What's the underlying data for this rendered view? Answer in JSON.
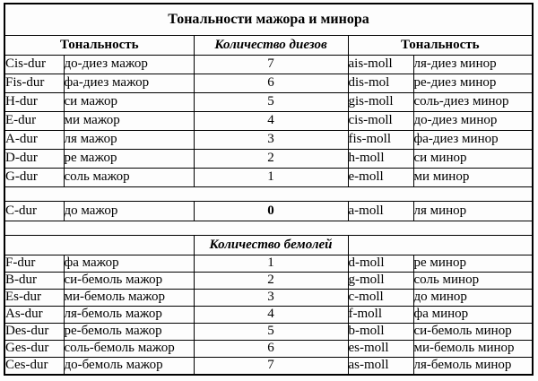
{
  "title": "Тональности мажора и минора",
  "colors": {
    "border": "#000000",
    "text": "#000000",
    "background": "#ffffff"
  },
  "table": {
    "header": {
      "left": "Тональность",
      "middle": "Количество диезов",
      "right": "Тональность"
    },
    "flats_header": "Количество бемолей",
    "sharp_rows": [
      {
        "major_latin": "Cis-dur",
        "major_name": "до-диез мажор",
        "count": "7",
        "minor_latin": "ais-moll",
        "minor_name": "ля-диез минор"
      },
      {
        "major_latin": "Fis-dur",
        "major_name": "фа-диез мажор",
        "count": "6",
        "minor_latin": "dis-mol",
        "minor_name": "ре-диез минор"
      },
      {
        "major_latin": "H-dur",
        "major_name": "си мажор",
        "count": "5",
        "minor_latin": "gis-moll",
        "minor_name": "соль-диез минор"
      },
      {
        "major_latin": "E-dur",
        "major_name": "ми мажор",
        "count": "4",
        "minor_latin": "cis-moll",
        "minor_name": "до-диез минор"
      },
      {
        "major_latin": "A-dur",
        "major_name": "ля мажор",
        "count": "3",
        "minor_latin": "fis-moll",
        "minor_name": "фа-диез минор"
      },
      {
        "major_latin": "D-dur",
        "major_name": "ре мажор",
        "count": "2",
        "minor_latin": "h-moll",
        "minor_name": "си минор"
      },
      {
        "major_latin": "G-dur",
        "major_name": "соль мажор",
        "count": "1",
        "minor_latin": "e-moll",
        "minor_name": "ми минор"
      }
    ],
    "natural_row": {
      "major_latin": "C-dur",
      "major_name": "до мажор",
      "count": "0",
      "minor_latin": "a-moll",
      "minor_name": "ля минор"
    },
    "flat_rows": [
      {
        "major_latin": "F-dur",
        "major_name": "фа мажор",
        "count": "1",
        "minor_latin": "d-moll",
        "minor_name": "ре минор"
      },
      {
        "major_latin": "B-dur",
        "major_name": "си-бемоль мажор",
        "count": "2",
        "minor_latin": "g-moll",
        "minor_name": "соль минор"
      },
      {
        "major_latin": "Es-dur",
        "major_name": "ми-бемоль мажор",
        "count": "3",
        "minor_latin": "c-moll",
        "minor_name": "до минор"
      },
      {
        "major_latin": "As-dur",
        "major_name": "ля-бемоль мажор",
        "count": "4",
        "minor_latin": "f-moll",
        "minor_name": "фа минор"
      },
      {
        "major_latin": "Des-dur",
        "major_name": "ре-бемоль мажор",
        "count": "5",
        "minor_latin": "b-moll",
        "minor_name": "си-бемоль минор"
      },
      {
        "major_latin": "Ges-dur",
        "major_name": "соль-бемоль мажор",
        "count": "6",
        "minor_latin": "es-moll",
        "minor_name": "ми-бемоль минор"
      },
      {
        "major_latin": "Ces-dur",
        "major_name": "до-бемоль мажор",
        "count": "7",
        "minor_latin": "as-moll",
        "minor_name": "ля-бемоль минор"
      }
    ]
  }
}
